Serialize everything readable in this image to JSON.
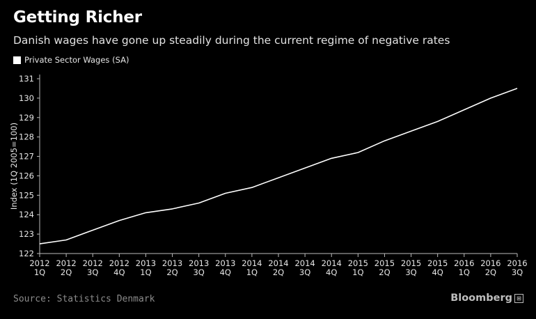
{
  "header": {
    "title": "Getting Richer",
    "subtitle": "Danish wages have gone up steadily during the current regime of negative rates"
  },
  "footer": {
    "source": "Source: Statistics Denmark",
    "brand": "Bloomberg",
    "brand_icon": "bloomberg-mark-icon"
  },
  "colors": {
    "background": "#000000",
    "line": "#ffffff",
    "grid": "#333333"
  },
  "chart_data": {
    "type": "line",
    "title": "Getting Richer",
    "subtitle": "Danish wages have gone up steadily during the current regime of negative rates",
    "xlabel": "",
    "ylabel": "Index (1Q 2005=100)",
    "ylim": [
      122,
      131
    ],
    "yticks": [
      122,
      123,
      124,
      125,
      126,
      127,
      128,
      129,
      130,
      131
    ],
    "grid": false,
    "legend_position": "top-left",
    "categories": [
      [
        "2012",
        "1Q"
      ],
      [
        "2012",
        "2Q"
      ],
      [
        "2012",
        "3Q"
      ],
      [
        "2012",
        "4Q"
      ],
      [
        "2013",
        "1Q"
      ],
      [
        "2013",
        "2Q"
      ],
      [
        "2013",
        "3Q"
      ],
      [
        "2013",
        "4Q"
      ],
      [
        "2014",
        "1Q"
      ],
      [
        "2014",
        "2Q"
      ],
      [
        "2014",
        "3Q"
      ],
      [
        "2014",
        "4Q"
      ],
      [
        "2015",
        "1Q"
      ],
      [
        "2015",
        "2Q"
      ],
      [
        "2015",
        "3Q"
      ],
      [
        "2015",
        "4Q"
      ],
      [
        "2016",
        "1Q"
      ],
      [
        "2016",
        "2Q"
      ],
      [
        "2016",
        "3Q"
      ]
    ],
    "series": [
      {
        "name": "Private Sector Wages (SA)",
        "values": [
          122.5,
          122.7,
          123.2,
          123.7,
          124.1,
          124.3,
          124.6,
          125.1,
          125.4,
          125.9,
          126.4,
          126.9,
          127.2,
          127.8,
          128.3,
          128.8,
          129.4,
          130.0,
          130.5
        ]
      }
    ]
  }
}
